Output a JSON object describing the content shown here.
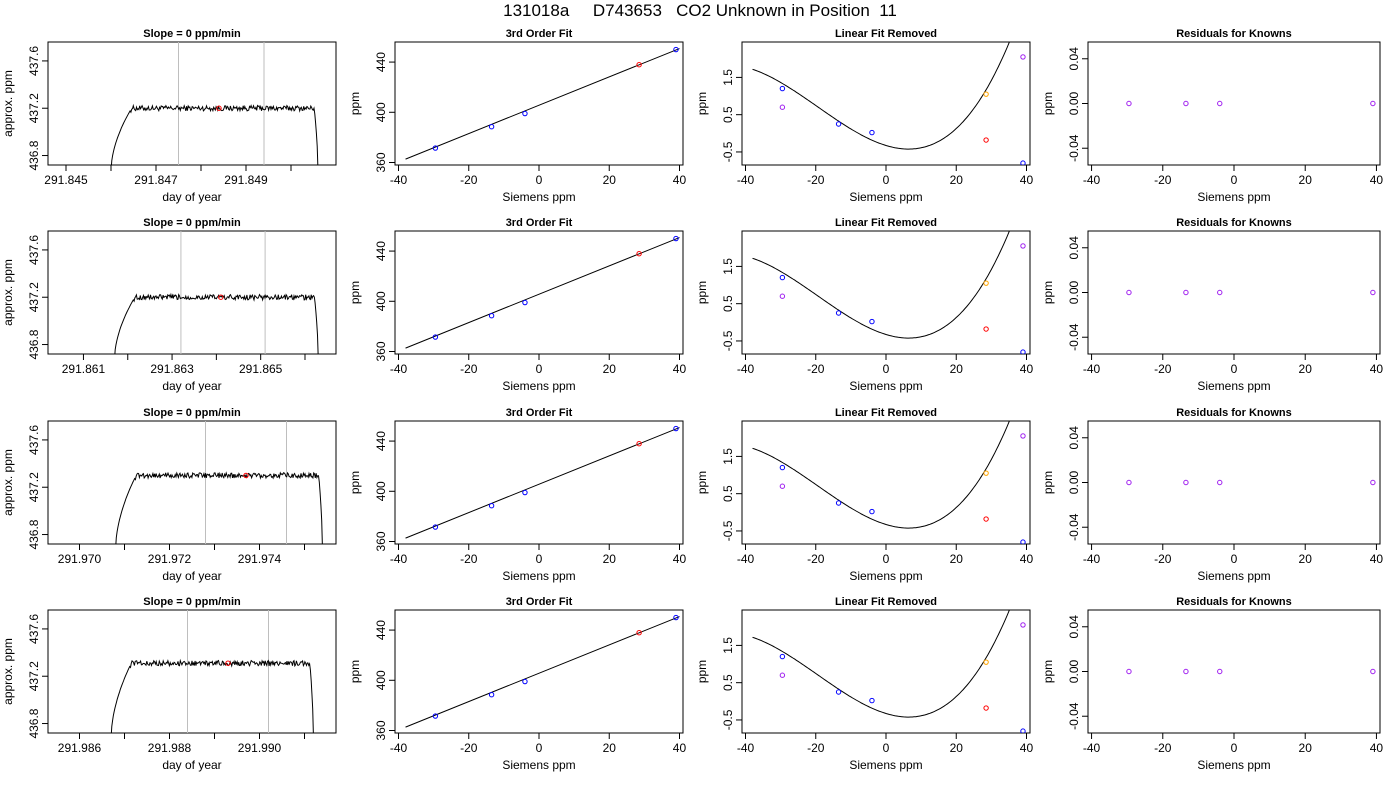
{
  "figure": {
    "title": "131018a     D743653   CO2 Unknown in Position  11"
  },
  "chart_data": [
    {
      "type": "line",
      "panel": "trace",
      "row": 1,
      "title": "Slope =  0  ppm/min",
      "xlabel": "day of year",
      "ylabel": "approx. ppm",
      "xlim": [
        291.8446,
        291.851
      ],
      "ylim": [
        436.72,
        437.76
      ],
      "xticks": [
        291.845,
        291.846,
        291.847,
        291.848,
        291.849,
        291.85
      ],
      "xtick_labels": [
        "291.845",
        "",
        "291.847",
        "",
        "291.849",
        ""
      ],
      "yticks": [
        436.8,
        437.2,
        437.6
      ],
      "ytick_labels": [
        "436.8",
        "437.2",
        "437.6"
      ],
      "trace": {
        "start": 291.846,
        "end": 291.8506,
        "level": 437.2
      },
      "window": [
        291.8475,
        291.8494
      ],
      "marker": {
        "x": 291.8484,
        "y": 437.2
      }
    },
    {
      "type": "scatter",
      "panel": "fit",
      "row": 1,
      "title": "3rd Order Fit",
      "xlabel": "Siemens ppm",
      "ylabel": "ppm",
      "xlim": [
        -41,
        41
      ],
      "ylim": [
        358,
        456
      ],
      "xticks": [
        -40,
        -20,
        0,
        20,
        40
      ],
      "yticks": [
        360,
        400,
        440
      ],
      "fit_line": {
        "x0": -38,
        "y0": 362.7,
        "x1": 40,
        "y1": 450.8
      },
      "knowns": [
        [
          -29.5,
          371.5
        ],
        [
          -13.5,
          388.5
        ],
        [
          -4.0,
          399.0
        ],
        [
          39.0,
          450.0
        ]
      ],
      "unknown": [
        28.5,
        437.9
      ]
    },
    {
      "type": "scatter",
      "panel": "linear-removed",
      "row": 1,
      "title": "Linear Fit Removed",
      "xlabel": "Siemens ppm",
      "ylabel": "ppm",
      "xlim": [
        -41,
        41
      ],
      "ylim": [
        -0.85,
        2.45
      ],
      "xticks": [
        -40,
        -20,
        0,
        20,
        40
      ],
      "yticks": [
        -0.5,
        0.5,
        1.5
      ],
      "ytick_labels": [
        "-0.5",
        "0.5",
        "1.5"
      ],
      "curve_coefficients": [
        -0.3264,
        -0.0286,
        0.00191,
        3.28e-05
      ],
      "curve_range": [
        -38,
        40
      ],
      "knowns": [
        [
          -29.5,
          1.2
        ],
        [
          -13.5,
          0.25
        ],
        [
          -4.0,
          0.02
        ],
        [
          39.0,
          -0.8
        ]
      ],
      "unknown": [
        28.5,
        -0.18
      ],
      "violet": [
        [
          -29.5,
          0.7
        ],
        [
          39.0,
          2.05
        ]
      ],
      "orange": [
        [
          28.5,
          1.05
        ]
      ]
    },
    {
      "type": "scatter",
      "panel": "residuals",
      "row": 1,
      "title": "Residuals for Knowns",
      "xlabel": "Siemens ppm",
      "ylabel": "ppm",
      "xlim": [
        -41,
        41
      ],
      "ylim": [
        -0.055,
        0.055
      ],
      "xticks": [
        -40,
        -20,
        0,
        20,
        40
      ],
      "yticks": [
        -0.04,
        0.0,
        0.04
      ],
      "ytick_labels": [
        "-0.04",
        "0.00",
        "0.04"
      ],
      "points": [
        [
          -29.5,
          0
        ],
        [
          -13.5,
          0
        ],
        [
          -4.0,
          0
        ],
        [
          39.0,
          0
        ]
      ]
    },
    {
      "type": "line",
      "panel": "trace",
      "row": 2,
      "title": "Slope =  0  ppm/min",
      "xlabel": "day of year",
      "ylabel": "approx. ppm",
      "xlim": [
        291.8602,
        291.8667
      ],
      "ylim": [
        436.72,
        437.76
      ],
      "xticks": [
        291.861,
        291.862,
        291.863,
        291.864,
        291.865,
        291.866
      ],
      "xtick_labels": [
        "291.861",
        "",
        "291.863",
        "",
        "291.865",
        ""
      ],
      "yticks": [
        436.8,
        437.2,
        437.6
      ],
      "ytick_labels": [
        "436.8",
        "437.2",
        "437.6"
      ],
      "trace": {
        "start": 291.8617,
        "end": 291.8663,
        "level": 437.2
      },
      "window": [
        291.8632,
        291.8651
      ],
      "marker": {
        "x": 291.8641,
        "y": 437.2
      }
    },
    {
      "type": "scatter",
      "panel": "fit",
      "row": 2,
      "title": "3rd Order Fit",
      "xlabel": "Siemens ppm",
      "ylabel": "ppm",
      "xlim": [
        -41,
        41
      ],
      "ylim": [
        358,
        456
      ],
      "xticks": [
        -40,
        -20,
        0,
        20,
        40
      ],
      "yticks": [
        360,
        400,
        440
      ],
      "fit_line": {
        "x0": -38,
        "y0": 362.7,
        "x1": 40,
        "y1": 450.8
      },
      "knowns": [
        [
          -29.5,
          371.5
        ],
        [
          -13.5,
          388.5
        ],
        [
          -4.0,
          399.0
        ],
        [
          39.0,
          450.0
        ]
      ],
      "unknown": [
        28.5,
        437.9
      ]
    },
    {
      "type": "scatter",
      "panel": "linear-removed",
      "row": 2,
      "title": "Linear Fit Removed",
      "xlabel": "Siemens ppm",
      "ylabel": "ppm",
      "xlim": [
        -41,
        41
      ],
      "ylim": [
        -0.85,
        2.45
      ],
      "xticks": [
        -40,
        -20,
        0,
        20,
        40
      ],
      "yticks": [
        -0.5,
        0.5,
        1.5
      ],
      "ytick_labels": [
        "-0.5",
        "0.5",
        "1.5"
      ],
      "curve_coefficients": [
        -0.3264,
        -0.0286,
        0.00191,
        3.28e-05
      ],
      "curve_range": [
        -38,
        40
      ],
      "knowns": [
        [
          -29.5,
          1.2
        ],
        [
          -13.5,
          0.25
        ],
        [
          -4.0,
          0.02
        ],
        [
          39.0,
          -0.8
        ]
      ],
      "unknown": [
        28.5,
        -0.18
      ],
      "violet": [
        [
          -29.5,
          0.7
        ],
        [
          39.0,
          2.05
        ]
      ],
      "orange": [
        [
          28.5,
          1.05
        ]
      ]
    },
    {
      "type": "scatter",
      "panel": "residuals",
      "row": 2,
      "title": "Residuals for Knowns",
      "xlabel": "Siemens ppm",
      "ylabel": "ppm",
      "xlim": [
        -41,
        41
      ],
      "ylim": [
        -0.055,
        0.055
      ],
      "xticks": [
        -40,
        -20,
        0,
        20,
        40
      ],
      "yticks": [
        -0.04,
        0.0,
        0.04
      ],
      "ytick_labels": [
        "-0.04",
        "0.00",
        "0.04"
      ],
      "points": [
        [
          -29.5,
          0
        ],
        [
          -13.5,
          0
        ],
        [
          -4.0,
          0
        ],
        [
          39.0,
          0
        ]
      ]
    },
    {
      "type": "line",
      "panel": "trace",
      "row": 3,
      "title": "Slope =  0  ppm/min",
      "xlabel": "day of year",
      "ylabel": "approx. ppm",
      "xlim": [
        291.9693,
        291.9757
      ],
      "ylim": [
        436.72,
        437.76
      ],
      "xticks": [
        291.97,
        291.971,
        291.972,
        291.973,
        291.974,
        291.975
      ],
      "xtick_labels": [
        "291.970",
        "",
        "291.972",
        "",
        "291.974",
        ""
      ],
      "yticks": [
        436.8,
        437.2,
        437.6
      ],
      "ytick_labels": [
        "436.8",
        "437.2",
        "437.6"
      ],
      "trace": {
        "start": 291.9708,
        "end": 291.9754,
        "level": 437.3
      },
      "window": [
        291.9728,
        291.9746
      ],
      "marker": {
        "x": 291.9737,
        "y": 437.3
      }
    },
    {
      "type": "scatter",
      "panel": "fit",
      "row": 3,
      "title": "3rd Order Fit",
      "xlabel": "Siemens ppm",
      "ylabel": "ppm",
      "xlim": [
        -41,
        41
      ],
      "ylim": [
        358,
        456
      ],
      "xticks": [
        -40,
        -20,
        0,
        20,
        40
      ],
      "yticks": [
        360,
        400,
        440
      ],
      "fit_line": {
        "x0": -38,
        "y0": 362.7,
        "x1": 40,
        "y1": 450.8
      },
      "knowns": [
        [
          -29.5,
          371.5
        ],
        [
          -13.5,
          388.5
        ],
        [
          -4.0,
          399.0
        ],
        [
          39.0,
          450.0
        ]
      ],
      "unknown": [
        28.5,
        437.9
      ]
    },
    {
      "type": "scatter",
      "panel": "linear-removed",
      "row": 3,
      "title": "Linear Fit Removed",
      "xlabel": "Siemens ppm",
      "ylabel": "ppm",
      "xlim": [
        -41,
        41
      ],
      "ylim": [
        -0.85,
        2.45
      ],
      "xticks": [
        -40,
        -20,
        0,
        20,
        40
      ],
      "yticks": [
        -0.5,
        0.5,
        1.5
      ],
      "ytick_labels": [
        "-0.5",
        "0.5",
        "1.5"
      ],
      "curve_coefficients": [
        -0.3264,
        -0.0286,
        0.00191,
        3.28e-05
      ],
      "curve_range": [
        -38,
        40
      ],
      "knowns": [
        [
          -29.5,
          1.2
        ],
        [
          -13.5,
          0.25
        ],
        [
          -4.0,
          0.02
        ],
        [
          39.0,
          -0.8
        ]
      ],
      "unknown": [
        28.5,
        -0.18
      ],
      "violet": [
        [
          -29.5,
          0.7
        ],
        [
          39.0,
          2.05
        ]
      ],
      "orange": [
        [
          28.5,
          1.05
        ]
      ]
    },
    {
      "type": "scatter",
      "panel": "residuals",
      "row": 3,
      "title": "Residuals for Knowns",
      "xlabel": "Siemens ppm",
      "ylabel": "ppm",
      "xlim": [
        -41,
        41
      ],
      "ylim": [
        -0.055,
        0.055
      ],
      "xticks": [
        -40,
        -20,
        0,
        20,
        40
      ],
      "yticks": [
        -0.04,
        0.0,
        0.04
      ],
      "ytick_labels": [
        "-0.04",
        "0.00",
        "0.04"
      ],
      "points": [
        [
          -29.5,
          0
        ],
        [
          -13.5,
          0
        ],
        [
          -4.0,
          0
        ],
        [
          39.0,
          0
        ]
      ]
    },
    {
      "type": "line",
      "panel": "trace",
      "row": 4,
      "title": "Slope =  0  ppm/min",
      "xlabel": "day of year",
      "ylabel": "approx. ppm",
      "xlim": [
        291.9853,
        291.9917
      ],
      "ylim": [
        436.72,
        437.76
      ],
      "xticks": [
        291.986,
        291.987,
        291.988,
        291.989,
        291.99,
        291.991
      ],
      "xtick_labels": [
        "291.986",
        "",
        "291.988",
        "",
        "291.990",
        ""
      ],
      "yticks": [
        436.8,
        437.2,
        437.6
      ],
      "ytick_labels": [
        "436.8",
        "437.2",
        "437.6"
      ],
      "trace": {
        "start": 291.9867,
        "end": 291.9912,
        "level": 437.31
      },
      "window": [
        291.9884,
        291.9902
      ],
      "marker": {
        "x": 291.9893,
        "y": 437.31
      }
    },
    {
      "type": "scatter",
      "panel": "fit",
      "row": 4,
      "title": "3rd Order Fit",
      "xlabel": "Siemens ppm",
      "ylabel": "ppm",
      "xlim": [
        -41,
        41
      ],
      "ylim": [
        358,
        456
      ],
      "xticks": [
        -40,
        -20,
        0,
        20,
        40
      ],
      "yticks": [
        360,
        400,
        440
      ],
      "fit_line": {
        "x0": -38,
        "y0": 362.7,
        "x1": 40,
        "y1": 450.8
      },
      "knowns": [
        [
          -29.5,
          371.5
        ],
        [
          -13.5,
          388.5
        ],
        [
          -4.0,
          399.0
        ],
        [
          39.0,
          450.0
        ]
      ],
      "unknown": [
        28.5,
        437.9
      ]
    },
    {
      "type": "scatter",
      "panel": "linear-removed",
      "row": 4,
      "title": "Linear Fit Removed",
      "xlabel": "Siemens ppm",
      "ylabel": "ppm",
      "xlim": [
        -41,
        41
      ],
      "ylim": [
        -0.85,
        2.45
      ],
      "xticks": [
        -40,
        -20,
        0,
        20,
        40
      ],
      "yticks": [
        -0.5,
        0.5,
        1.5
      ],
      "ytick_labels": [
        "-0.5",
        "0.5",
        "1.5"
      ],
      "curve_coefficients": [
        -0.3264,
        -0.0286,
        0.00191,
        3.28e-05
      ],
      "curve_range": [
        -38,
        40
      ],
      "knowns": [
        [
          -29.5,
          1.2
        ],
        [
          -13.5,
          0.25
        ],
        [
          -4.0,
          0.02
        ],
        [
          39.0,
          -0.8
        ]
      ],
      "unknown": [
        28.5,
        -0.18
      ],
      "violet": [
        [
          -29.5,
          0.7
        ],
        [
          39.0,
          2.05
        ]
      ],
      "orange": [
        [
          28.5,
          1.05
        ]
      ]
    },
    {
      "type": "scatter",
      "panel": "residuals",
      "row": 4,
      "title": "Residuals for Knowns",
      "xlabel": "Siemens ppm",
      "ylabel": "ppm",
      "xlim": [
        -41,
        41
      ],
      "ylim": [
        -0.055,
        0.055
      ],
      "xticks": [
        -40,
        -20,
        0,
        20,
        40
      ],
      "yticks": [
        -0.04,
        0.0,
        0.04
      ],
      "ytick_labels": [
        "-0.04",
        "0.00",
        "0.04"
      ],
      "points": [
        [
          -29.5,
          0
        ],
        [
          -13.5,
          0
        ],
        [
          -4.0,
          0
        ],
        [
          39.0,
          0
        ]
      ]
    }
  ],
  "colors": {
    "axis": "#000000",
    "trace": "#000000",
    "window": "#bebebe",
    "known": "#0000ff",
    "unknown": "#ff0000",
    "violet": "#a020f0",
    "orange": "#ffa500",
    "residual": "#a020f0"
  }
}
